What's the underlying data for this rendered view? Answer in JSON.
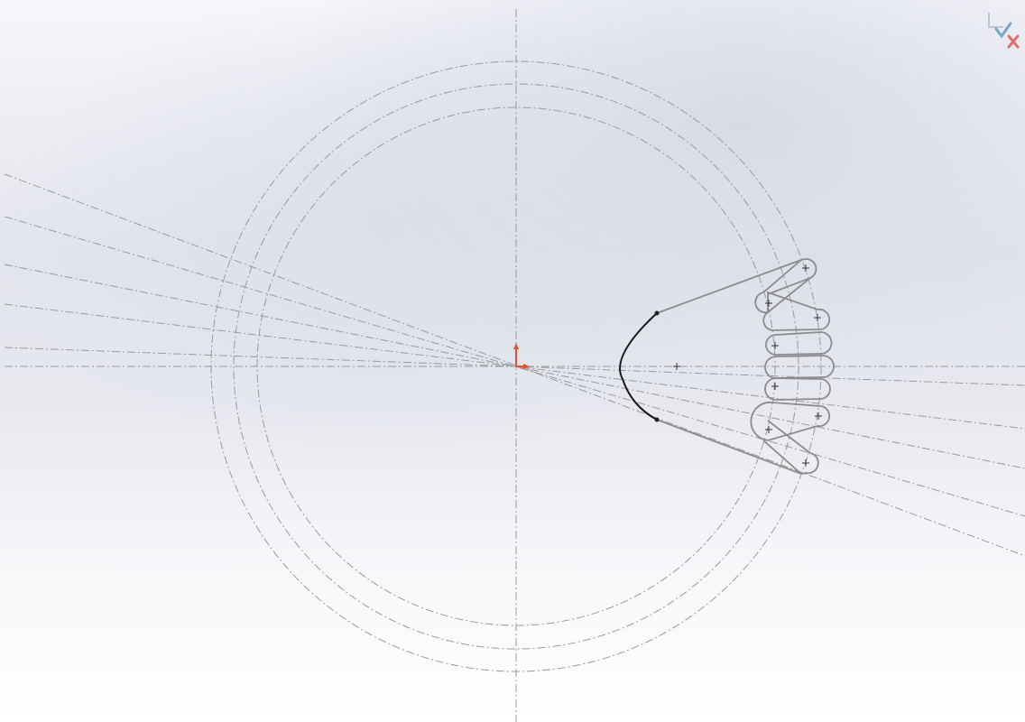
{
  "app": {
    "view": "sketch-editor"
  },
  "confirmation_corner": {
    "accept_icon": "sketch-exit-accept-icon",
    "cancel_icon": "close-icon",
    "accept_color": "#7aa6c8",
    "cancel_color": "#e07070"
  },
  "origin": {
    "icon": "origin-icon",
    "color": "#e8502a"
  },
  "colors": {
    "background_top": "#f6f7fa",
    "construction_line": "#9a9a9a",
    "slot_outline": "#8c8c8c",
    "selected_arc": "#1a1a1a"
  }
}
